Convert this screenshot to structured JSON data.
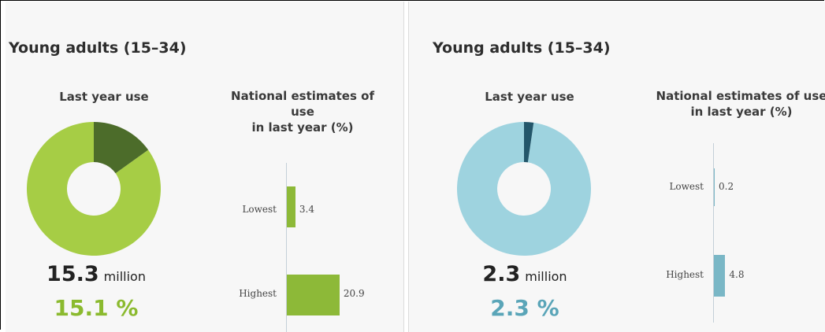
{
  "panels": [
    {
      "title": "Young adults (15–34)",
      "donut_title": "Last year use",
      "estimates_title_lines": [
        "National estimates of",
        "use",
        "in last year (%)"
      ],
      "users_number": "15.3",
      "users_unit": "million",
      "percentage": "15.1 %",
      "donut_share_percent": 15.1,
      "colors": {
        "main": "#a6cd45",
        "highlight": "#4c6c2a",
        "percent_text": "#8bba2f",
        "bar": "#8db938"
      }
    },
    {
      "title": "Young adults (15–34)",
      "donut_title": "Last year use",
      "estimates_title_lines": [
        "National estimates of use",
        "in last year (%)"
      ],
      "users_number": "2.3",
      "users_unit": "million",
      "percentage": "2.3 %",
      "donut_share_percent": 2.3,
      "colors": {
        "main": "#9ed3df",
        "highlight": "#23566a",
        "percent_text": "#5aa5b8",
        "bar": "#7ab7c6"
      }
    }
  ],
  "chart_data": [
    {
      "type": "pie",
      "title": "Last year use",
      "slices": [
        {
          "label": "Last year use",
          "value": 15.1
        },
        {
          "label": "",
          "value": 84.9
        }
      ]
    },
    {
      "type": "bar",
      "title": "National estimates of use in last year (%)",
      "categories": [
        "Lowest",
        "Highest"
      ],
      "values": [
        3.4,
        20.9
      ],
      "orientation": "horizontal"
    },
    {
      "type": "pie",
      "title": "Last year use",
      "slices": [
        {
          "label": "Last year use",
          "value": 2.3
        },
        {
          "label": "",
          "value": 97.7
        }
      ]
    },
    {
      "type": "bar",
      "title": "National estimates of use in last year (%)",
      "categories": [
        "Lowest",
        "Highest"
      ],
      "values": [
        0.2,
        4.8
      ],
      "orientation": "horizontal"
    }
  ]
}
